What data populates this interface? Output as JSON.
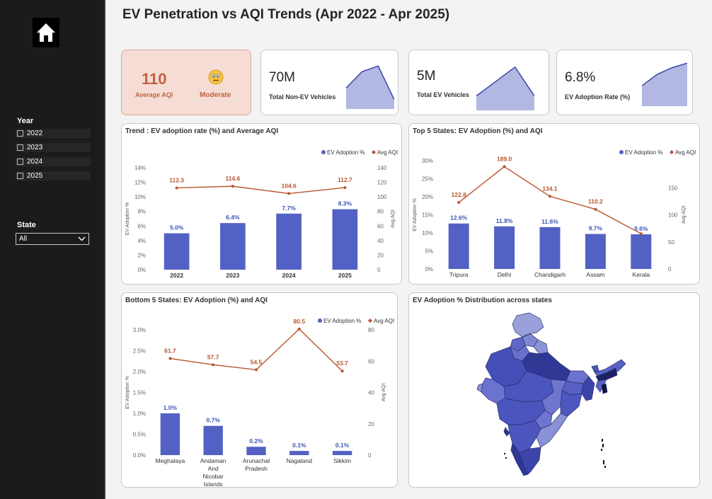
{
  "title": "EV Penetration vs AQI Trends (Apr 2022 - Apr 2025)",
  "sidebar": {
    "year_label": "Year",
    "years": [
      "2022",
      "2023",
      "2024",
      "2025"
    ],
    "state_label": "State",
    "state_value": "All"
  },
  "kpis": {
    "avg_aqi": {
      "value": "110",
      "label": "Average AQI",
      "status": "Moderate"
    },
    "non_ev": {
      "value": "70M",
      "label": "Total Non-EV Vehicles"
    },
    "ev": {
      "value": "5M",
      "label": "Total EV Vehicles"
    },
    "adoption": {
      "value": "6.8%",
      "label": "EV Adoption Rate (%)"
    }
  },
  "colors": {
    "bar": "#5361c4",
    "line": "#b9542f",
    "aqi_bg": "#f5ddd6",
    "spark": "#b3b8e3"
  },
  "map": {
    "title": "EV Adoption % Distribution across states"
  },
  "chart_data": [
    {
      "type": "bar",
      "title": "Trend : EV adoption rate (%) and Average AQI",
      "categories": [
        "2022",
        "2023",
        "2024",
        "2025"
      ],
      "series": [
        {
          "name": "EV Adoption %",
          "type": "bar",
          "values": [
            5.0,
            6.4,
            7.7,
            8.3
          ],
          "labels": [
            "5.0%",
            "6.4%",
            "7.7%",
            "8.3%"
          ]
        },
        {
          "name": "Avg AQI",
          "type": "line",
          "values": [
            112.3,
            114.6,
            104.6,
            112.7
          ],
          "labels": [
            "112.3",
            "114.6",
            "104.6",
            "112.7"
          ]
        }
      ],
      "ylabel": "EV Adoption %",
      "y2label": "Avg AQI",
      "ylim": [
        0,
        14
      ],
      "yticks": [
        "0%",
        "2%",
        "4%",
        "6%",
        "8%",
        "10%",
        "12%",
        "14%"
      ],
      "y2lim": [
        0,
        140
      ],
      "y2ticks": [
        "0",
        "20",
        "40",
        "60",
        "80",
        "100",
        "120",
        "140"
      ],
      "legend": "top-right"
    },
    {
      "type": "bar",
      "title": "Top 5 States: EV Adoption (%) and AQI",
      "categories": [
        "Tripura",
        "Delhi",
        "Chandigarh",
        "Assam",
        "Kerala"
      ],
      "series": [
        {
          "name": "EV Adoption %",
          "type": "bar",
          "values": [
            12.6,
            11.8,
            11.6,
            9.7,
            9.6
          ],
          "labels": [
            "12.6%",
            "11.8%",
            "11.6%",
            "9.7%",
            "9.6%"
          ]
        },
        {
          "name": "Avg AQI",
          "type": "line",
          "values": [
            122.8,
            189.0,
            134.1,
            110.2,
            65
          ],
          "labels": [
            "122.8",
            "189.0",
            "134.1",
            "110.2",
            ""
          ]
        }
      ],
      "ylabel": "EV Adoption %",
      "y2label": "Avg AQI",
      "ylim": [
        0,
        30
      ],
      "yticks": [
        "0%",
        "5%",
        "10%",
        "15%",
        "20%",
        "25%",
        "30%"
      ],
      "y2lim": [
        0,
        200
      ],
      "y2ticks": [
        "0",
        "50",
        "100",
        "150"
      ],
      "legend": "top-right"
    },
    {
      "type": "bar",
      "title": "Bottom 5 States: EV Adoption (%) and AQI",
      "categories": [
        "Meghalaya",
        "Andaman And Nicobar Islands",
        "Arunachal Pradesh",
        "Nagaland",
        "Sikkim"
      ],
      "series": [
        {
          "name": "EV Adoption %",
          "type": "bar",
          "values": [
            1.0,
            0.7,
            0.2,
            0.1,
            0.1
          ],
          "labels": [
            "1.0%",
            "0.7%",
            "0.2%",
            "0.1%",
            "0.1%"
          ]
        },
        {
          "name": "Avg AQI",
          "type": "line",
          "values": [
            61.7,
            57.7,
            54.5,
            80.5,
            53.7
          ],
          "labels": [
            "61.7",
            "57.7",
            "54.5",
            "80.5",
            "53.7"
          ]
        }
      ],
      "ylabel": "EV Adoption %",
      "y2label": "Avg AQI",
      "ylim": [
        0,
        3
      ],
      "yticks": [
        "0.0%",
        "0.5%",
        "1.0%",
        "1.5%",
        "2.0%",
        "2.5%",
        "3.0%"
      ],
      "y2lim": [
        0,
        80
      ],
      "y2ticks": [
        "0",
        "20",
        "40",
        "60",
        "80"
      ],
      "legend": "top-right"
    },
    {
      "type": "area",
      "title": "",
      "x": [
        1,
        2,
        3,
        4
      ],
      "values": [
        45,
        80,
        92,
        20
      ]
    },
    {
      "type": "area",
      "title": "",
      "x": [
        1,
        2,
        3,
        4
      ],
      "values": [
        30,
        60,
        90,
        30
      ]
    },
    {
      "type": "area",
      "title": "",
      "x": [
        1,
        2,
        3,
        4
      ],
      "values": [
        45,
        70,
        85,
        95
      ]
    }
  ]
}
